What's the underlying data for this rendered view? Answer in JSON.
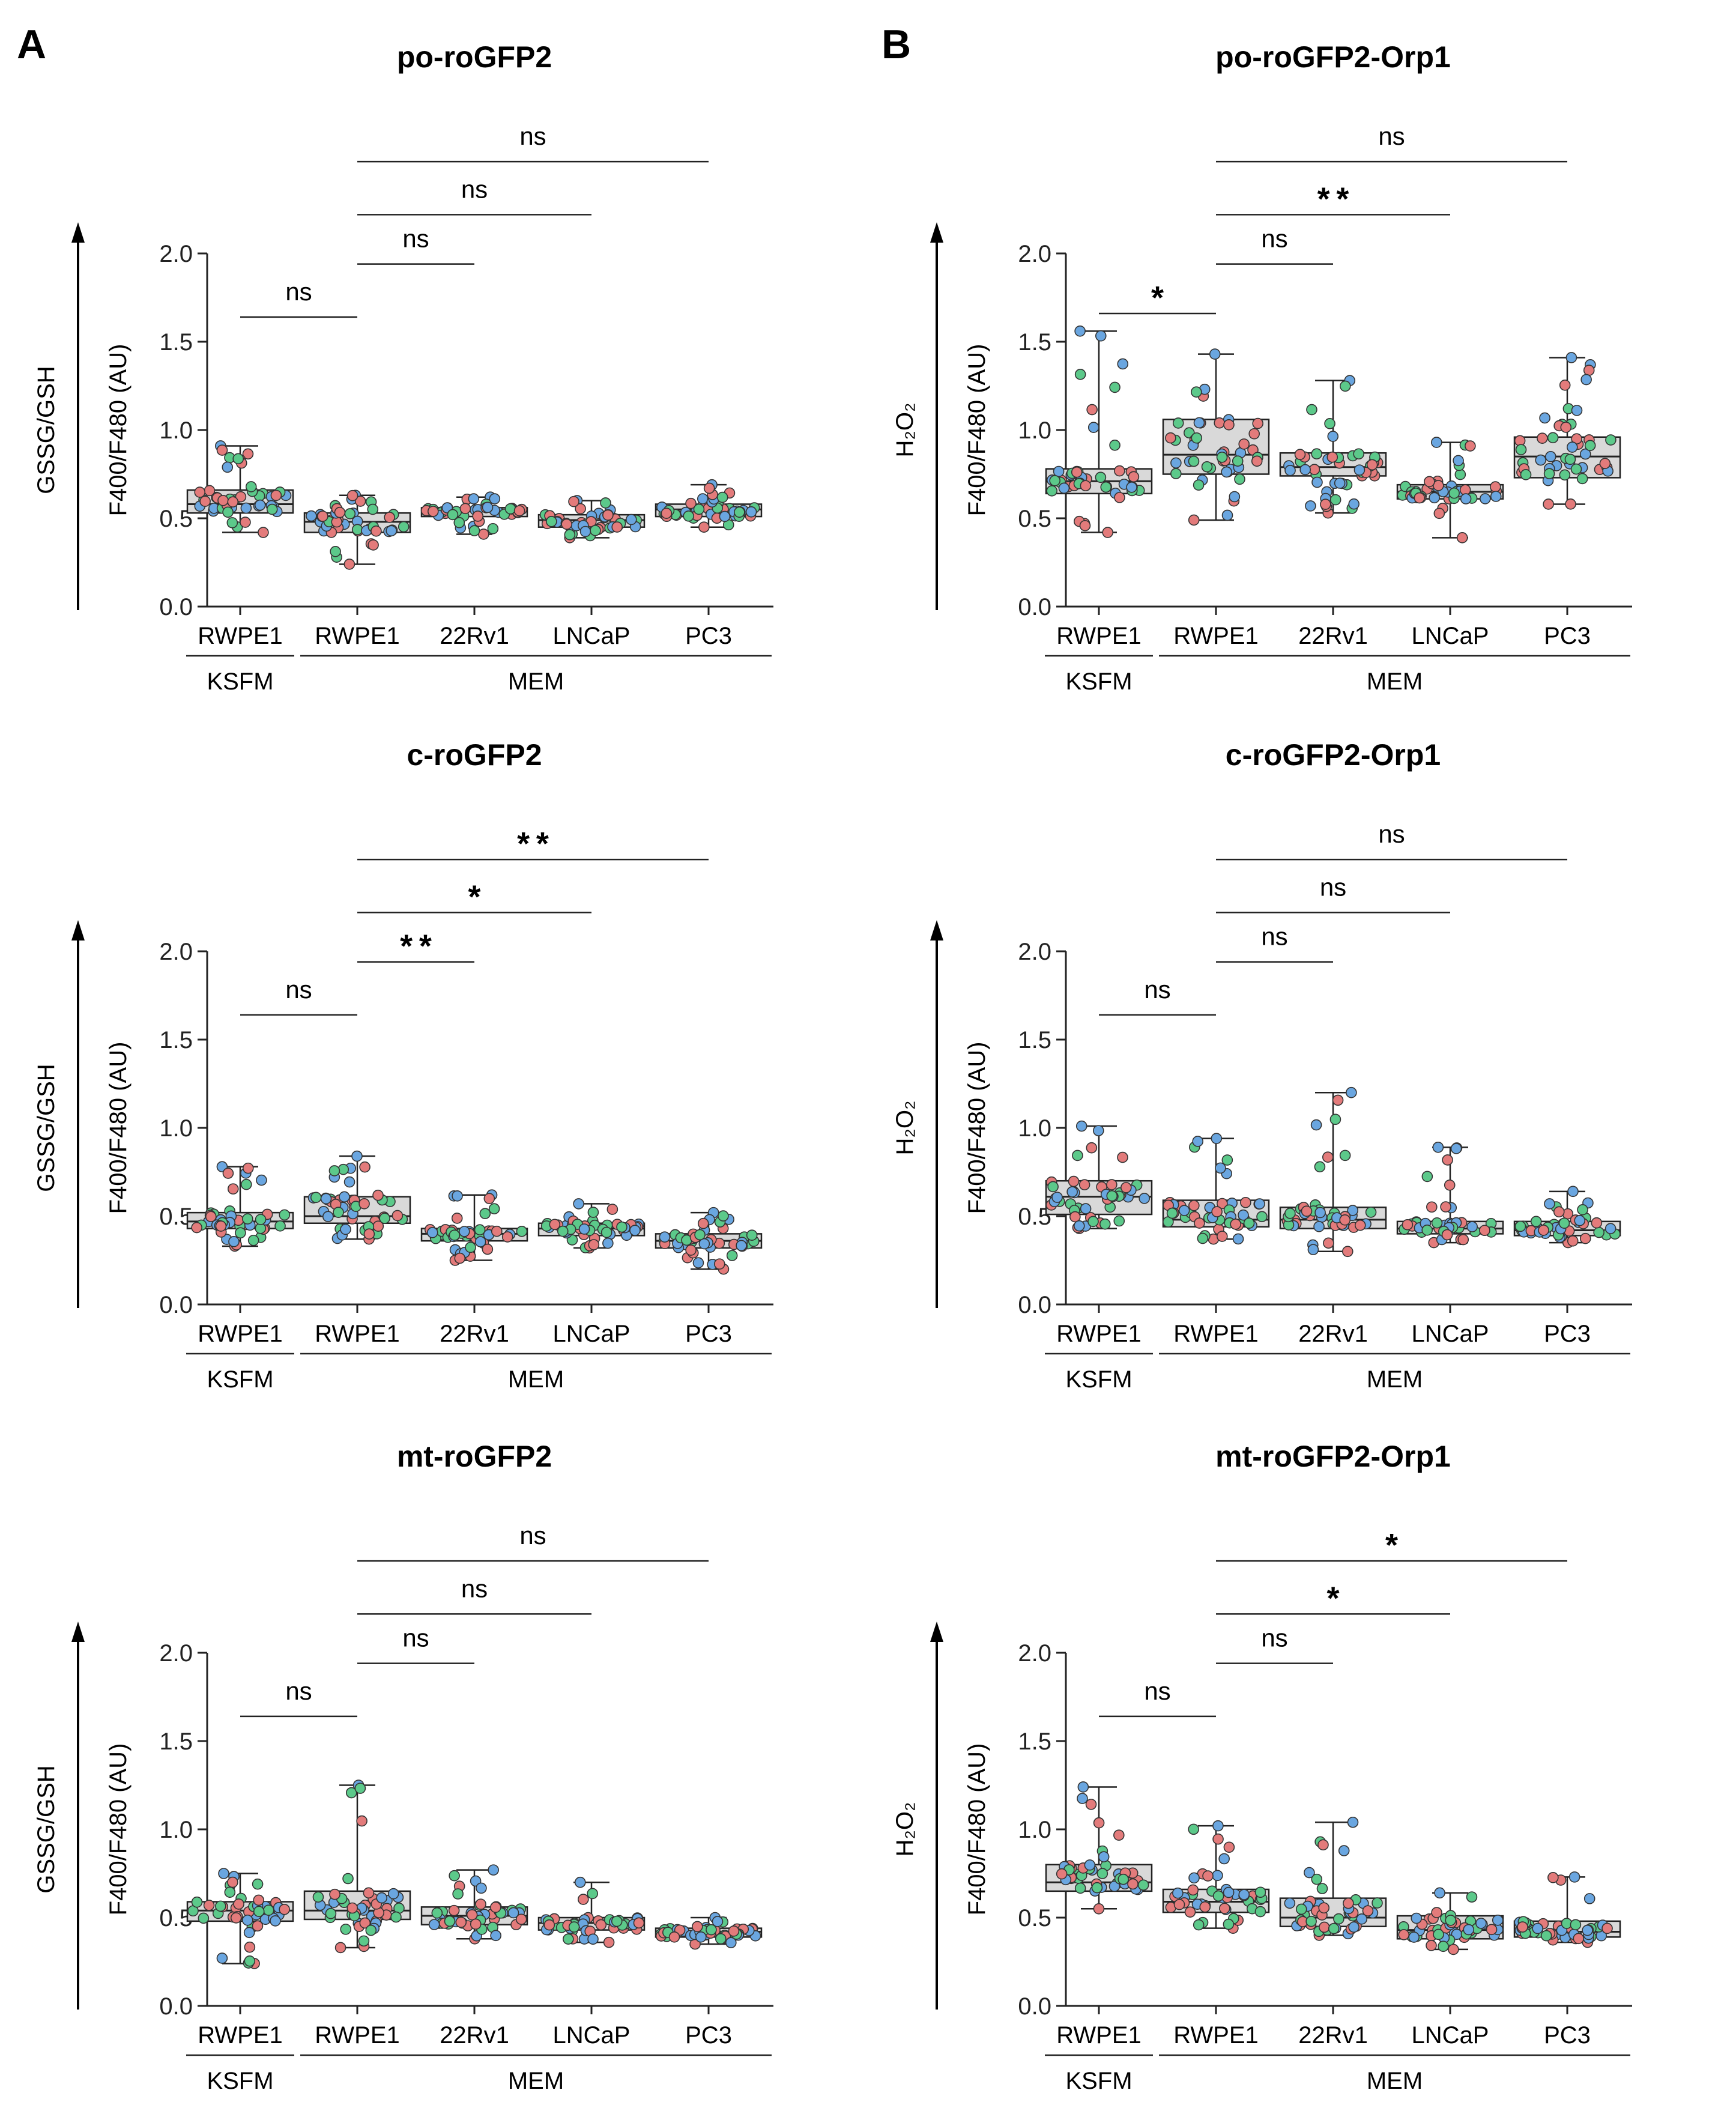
{
  "panel_labels": [
    "A",
    "B"
  ],
  "chart_data": [
    {
      "type": "box",
      "title": "po-roGFP2",
      "ylabel": "F400/F480 (AU)",
      "arrow_label": "GSSG/GSH",
      "ylim": [
        0.0,
        2.0
      ],
      "yticks": [
        "0.0",
        "0.5",
        "1.0",
        "1.5",
        "2.0"
      ],
      "categories": [
        "RWPE1",
        "RWPE1",
        "22Rv1",
        "LNCaP",
        "PC3"
      ],
      "condition_groups": [
        "KSFM",
        "MEM"
      ],
      "boxes": [
        {
          "min": 0.42,
          "q1": 0.53,
          "median": 0.58,
          "q3": 0.66,
          "max": 0.91
        },
        {
          "min": 0.24,
          "q1": 0.42,
          "median": 0.48,
          "q3": 0.53,
          "max": 0.63
        },
        {
          "min": 0.41,
          "q1": 0.51,
          "median": 0.54,
          "q3": 0.56,
          "max": 0.62
        },
        {
          "min": 0.39,
          "q1": 0.45,
          "median": 0.49,
          "q3": 0.52,
          "max": 0.6
        },
        {
          "min": 0.45,
          "q1": 0.51,
          "median": 0.55,
          "q3": 0.58,
          "max": 0.69
        }
      ],
      "comparisons": [
        {
          "from": 0,
          "to": 1,
          "label": "ns",
          "y": 1.64
        },
        {
          "from": 1,
          "to": 2,
          "label": "ns",
          "y": 1.94
        },
        {
          "from": 1,
          "to": 3,
          "label": "ns",
          "y": 2.22
        },
        {
          "from": 1,
          "to": 4,
          "label": "ns",
          "y": 2.52
        }
      ]
    },
    {
      "type": "box",
      "title": "po-roGFP2-Orp1",
      "ylabel": "F400/F480 (AU)",
      "arrow_label": "H₂O₂",
      "ylim": [
        0.0,
        2.0
      ],
      "yticks": [
        "0.0",
        "0.5",
        "1.0",
        "1.5",
        "2.0"
      ],
      "categories": [
        "RWPE1",
        "RWPE1",
        "22Rv1",
        "LNCaP",
        "PC3"
      ],
      "condition_groups": [
        "KSFM",
        "MEM"
      ],
      "boxes": [
        {
          "min": 0.42,
          "q1": 0.64,
          "median": 0.71,
          "q3": 0.78,
          "max": 1.56
        },
        {
          "min": 0.49,
          "q1": 0.75,
          "median": 0.86,
          "q3": 1.06,
          "max": 1.43
        },
        {
          "min": 0.53,
          "q1": 0.74,
          "median": 0.79,
          "q3": 0.87,
          "max": 1.28
        },
        {
          "min": 0.39,
          "q1": 0.61,
          "median": 0.65,
          "q3": 0.69,
          "max": 0.93
        },
        {
          "min": 0.58,
          "q1": 0.73,
          "median": 0.85,
          "q3": 0.96,
          "max": 1.41
        }
      ],
      "comparisons": [
        {
          "from": 0,
          "to": 1,
          "label": "*",
          "y": 1.66
        },
        {
          "from": 1,
          "to": 2,
          "label": "ns",
          "y": 1.94
        },
        {
          "from": 1,
          "to": 3,
          "label": "**",
          "y": 2.22
        },
        {
          "from": 1,
          "to": 4,
          "label": "ns",
          "y": 2.52
        }
      ]
    },
    {
      "type": "box",
      "title": "c-roGFP2",
      "ylabel": "F400/F480 (AU)",
      "arrow_label": "GSSG/GSH",
      "ylim": [
        0.0,
        2.0
      ],
      "yticks": [
        "0.0",
        "0.5",
        "1.0",
        "1.5",
        "2.0"
      ],
      "categories": [
        "RWPE1",
        "RWPE1",
        "22Rv1",
        "LNCaP",
        "PC3"
      ],
      "condition_groups": [
        "KSFM",
        "MEM"
      ],
      "boxes": [
        {
          "min": 0.33,
          "q1": 0.43,
          "median": 0.47,
          "q3": 0.52,
          "max": 0.78
        },
        {
          "min": 0.37,
          "q1": 0.46,
          "median": 0.5,
          "q3": 0.61,
          "max": 0.84
        },
        {
          "min": 0.25,
          "q1": 0.36,
          "median": 0.4,
          "q3": 0.43,
          "max": 0.62
        },
        {
          "min": 0.32,
          "q1": 0.39,
          "median": 0.43,
          "q3": 0.46,
          "max": 0.57
        },
        {
          "min": 0.2,
          "q1": 0.32,
          "median": 0.36,
          "q3": 0.4,
          "max": 0.52
        }
      ],
      "comparisons": [
        {
          "from": 0,
          "to": 1,
          "label": "ns",
          "y": 1.64
        },
        {
          "from": 1,
          "to": 2,
          "label": "**",
          "y": 1.94
        },
        {
          "from": 1,
          "to": 3,
          "label": "*",
          "y": 2.22
        },
        {
          "from": 1,
          "to": 4,
          "label": "**",
          "y": 2.52
        }
      ]
    },
    {
      "type": "box",
      "title": "c-roGFP2-Orp1",
      "ylabel": "F400/F480 (AU)",
      "arrow_label": "H₂O₂",
      "ylim": [
        0.0,
        2.0
      ],
      "yticks": [
        "0.0",
        "0.5",
        "1.0",
        "1.5",
        "2.0"
      ],
      "categories": [
        "RWPE1",
        "RWPE1",
        "22Rv1",
        "LNCaP",
        "PC3"
      ],
      "condition_groups": [
        "KSFM",
        "MEM"
      ],
      "boxes": [
        {
          "min": 0.43,
          "q1": 0.51,
          "median": 0.61,
          "q3": 0.7,
          "max": 1.01
        },
        {
          "min": 0.37,
          "q1": 0.44,
          "median": 0.48,
          "q3": 0.59,
          "max": 0.94
        },
        {
          "min": 0.3,
          "q1": 0.43,
          "median": 0.48,
          "q3": 0.55,
          "max": 1.2
        },
        {
          "min": 0.35,
          "q1": 0.4,
          "median": 0.43,
          "q3": 0.47,
          "max": 0.89
        },
        {
          "min": 0.35,
          "q1": 0.39,
          "median": 0.42,
          "q3": 0.47,
          "max": 0.64
        }
      ],
      "comparisons": [
        {
          "from": 0,
          "to": 1,
          "label": "ns",
          "y": 1.64
        },
        {
          "from": 1,
          "to": 2,
          "label": "ns",
          "y": 1.94
        },
        {
          "from": 1,
          "to": 3,
          "label": "ns",
          "y": 2.22
        },
        {
          "from": 1,
          "to": 4,
          "label": "ns",
          "y": 2.52
        }
      ]
    },
    {
      "type": "box",
      "title": "mt-roGFP2",
      "ylabel": "F400/F480 (AU)",
      "arrow_label": "GSSG/GSH",
      "ylim": [
        0.0,
        2.0
      ],
      "yticks": [
        "0.0",
        "0.5",
        "1.0",
        "1.5",
        "2.0"
      ],
      "categories": [
        "RWPE1",
        "RWPE1",
        "22Rv1",
        "LNCaP",
        "PC3"
      ],
      "condition_groups": [
        "KSFM",
        "MEM"
      ],
      "boxes": [
        {
          "min": 0.24,
          "q1": 0.48,
          "median": 0.54,
          "q3": 0.59,
          "max": 0.75
        },
        {
          "min": 0.33,
          "q1": 0.49,
          "median": 0.54,
          "q3": 0.65,
          "max": 1.25
        },
        {
          "min": 0.38,
          "q1": 0.46,
          "median": 0.51,
          "q3": 0.56,
          "max": 0.77
        },
        {
          "min": 0.36,
          "q1": 0.43,
          "median": 0.47,
          "q3": 0.5,
          "max": 0.7
        },
        {
          "min": 0.35,
          "q1": 0.39,
          "median": 0.42,
          "q3": 0.44,
          "max": 0.5
        }
      ],
      "comparisons": [
        {
          "from": 0,
          "to": 1,
          "label": "ns",
          "y": 1.64
        },
        {
          "from": 1,
          "to": 2,
          "label": "ns",
          "y": 1.94
        },
        {
          "from": 1,
          "to": 3,
          "label": "ns",
          "y": 2.22
        },
        {
          "from": 1,
          "to": 4,
          "label": "ns",
          "y": 2.52
        }
      ]
    },
    {
      "type": "box",
      "title": "mt-roGFP2-Orp1",
      "ylabel": "F400/F480 (AU)",
      "arrow_label": "H₂O₂",
      "ylim": [
        0.0,
        2.0
      ],
      "yticks": [
        "0.0",
        "0.5",
        "1.0",
        "1.5",
        "2.0"
      ],
      "categories": [
        "RWPE1",
        "RWPE1",
        "22Rv1",
        "LNCaP",
        "PC3"
      ],
      "condition_groups": [
        "KSFM",
        "MEM"
      ],
      "boxes": [
        {
          "min": 0.55,
          "q1": 0.65,
          "median": 0.7,
          "q3": 0.8,
          "max": 1.24
        },
        {
          "min": 0.44,
          "q1": 0.53,
          "median": 0.59,
          "q3": 0.66,
          "max": 1.02
        },
        {
          "min": 0.4,
          "q1": 0.45,
          "median": 0.5,
          "q3": 0.61,
          "max": 1.04
        },
        {
          "min": 0.32,
          "q1": 0.38,
          "median": 0.43,
          "q3": 0.51,
          "max": 0.64
        },
        {
          "min": 0.36,
          "q1": 0.39,
          "median": 0.42,
          "q3": 0.48,
          "max": 0.73
        }
      ],
      "comparisons": [
        {
          "from": 0,
          "to": 1,
          "label": "ns",
          "y": 1.64
        },
        {
          "from": 1,
          "to": 2,
          "label": "ns",
          "y": 1.94
        },
        {
          "from": 1,
          "to": 3,
          "label": "*",
          "y": 2.22
        },
        {
          "from": 1,
          "to": 4,
          "label": "*",
          "y": 2.52
        }
      ]
    }
  ],
  "dot_colors": [
    "#e37b7b",
    "#6aa6e0",
    "#5cc98a"
  ]
}
